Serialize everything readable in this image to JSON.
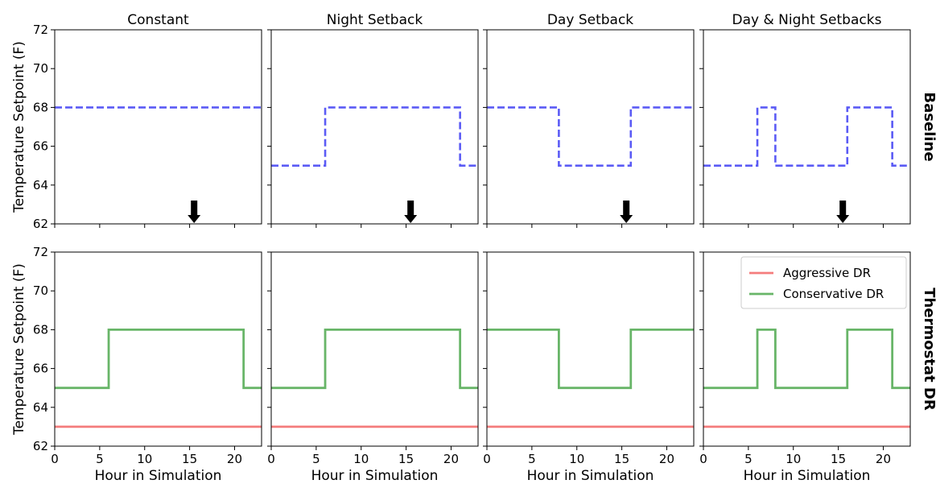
{
  "colors": {
    "baseline": "#5b5bf5",
    "aggressive": "#f47c7c",
    "conservative": "#68b568",
    "arrow": "#000000"
  },
  "row_labels": [
    "Baseline",
    "Thermostat DR"
  ],
  "chart_data": [
    {
      "type": "line",
      "row": 0,
      "col": 0,
      "title": "Constant",
      "ylabel": "Temperature Setpoint (F)",
      "xlabel": "",
      "xlim": [
        0,
        23
      ],
      "ylim": [
        62,
        72
      ],
      "xticks": [
        0,
        5,
        10,
        15,
        20
      ],
      "yticks": [
        62,
        64,
        66,
        68,
        70,
        72
      ],
      "show_xticklabels": false,
      "show_yticklabels": true,
      "series": [
        {
          "key": "baseline",
          "style": "dashed",
          "steps": [
            [
              0,
              68
            ],
            [
              23,
              68
            ]
          ]
        }
      ],
      "arrow_x": 15.5
    },
    {
      "type": "line",
      "row": 0,
      "col": 1,
      "title": "Night Setback",
      "ylabel": "",
      "xlabel": "",
      "xlim": [
        0,
        23
      ],
      "ylim": [
        62,
        72
      ],
      "xticks": [
        0,
        5,
        10,
        15,
        20
      ],
      "yticks": [
        62,
        64,
        66,
        68,
        70,
        72
      ],
      "show_xticklabels": false,
      "show_yticklabels": false,
      "series": [
        {
          "key": "baseline",
          "style": "dashed",
          "steps": [
            [
              0,
              65
            ],
            [
              6,
              65
            ],
            [
              6,
              68
            ],
            [
              21,
              68
            ],
            [
              21,
              65
            ],
            [
              23,
              65
            ]
          ]
        }
      ],
      "arrow_x": 15.5
    },
    {
      "type": "line",
      "row": 0,
      "col": 2,
      "title": "Day Setback",
      "ylabel": "",
      "xlabel": "",
      "xlim": [
        0,
        23
      ],
      "ylim": [
        62,
        72
      ],
      "xticks": [
        0,
        5,
        10,
        15,
        20
      ],
      "yticks": [
        62,
        64,
        66,
        68,
        70,
        72
      ],
      "show_xticklabels": false,
      "show_yticklabels": false,
      "series": [
        {
          "key": "baseline",
          "style": "dashed",
          "steps": [
            [
              0,
              68
            ],
            [
              8,
              68
            ],
            [
              8,
              65
            ],
            [
              16,
              65
            ],
            [
              16,
              68
            ],
            [
              23,
              68
            ]
          ]
        }
      ],
      "arrow_x": 15.5
    },
    {
      "type": "line",
      "row": 0,
      "col": 3,
      "title": "Day & Night Setbacks",
      "ylabel": "",
      "xlabel": "",
      "xlim": [
        0,
        23
      ],
      "ylim": [
        62,
        72
      ],
      "xticks": [
        0,
        5,
        10,
        15,
        20
      ],
      "yticks": [
        62,
        64,
        66,
        68,
        70,
        72
      ],
      "show_xticklabels": false,
      "show_yticklabels": false,
      "series": [
        {
          "key": "baseline",
          "style": "dashed",
          "steps": [
            [
              0,
              65
            ],
            [
              6,
              65
            ],
            [
              6,
              68
            ],
            [
              8,
              68
            ],
            [
              8,
              65
            ],
            [
              16,
              65
            ],
            [
              16,
              68
            ],
            [
              21,
              68
            ],
            [
              21,
              65
            ],
            [
              23,
              65
            ]
          ]
        }
      ],
      "arrow_x": 15.5
    },
    {
      "type": "line",
      "row": 1,
      "col": 0,
      "title": "",
      "ylabel": "Temperature Setpoint (F)",
      "xlabel": "Hour in Simulation",
      "xlim": [
        0,
        23
      ],
      "ylim": [
        62,
        72
      ],
      "xticks": [
        0,
        5,
        10,
        15,
        20
      ],
      "yticks": [
        62,
        64,
        66,
        68,
        70,
        72
      ],
      "show_xticklabels": true,
      "show_yticklabels": true,
      "series": [
        {
          "key": "aggressive",
          "style": "solid",
          "steps": [
            [
              0,
              63
            ],
            [
              23,
              63
            ]
          ]
        },
        {
          "key": "conservative",
          "style": "solid",
          "steps": [
            [
              0,
              65
            ],
            [
              6,
              65
            ],
            [
              6,
              68
            ],
            [
              21,
              68
            ],
            [
              21,
              65
            ],
            [
              23,
              65
            ]
          ]
        }
      ]
    },
    {
      "type": "line",
      "row": 1,
      "col": 1,
      "title": "",
      "ylabel": "",
      "xlabel": "Hour in Simulation",
      "xlim": [
        0,
        23
      ],
      "ylim": [
        62,
        72
      ],
      "xticks": [
        0,
        5,
        10,
        15,
        20
      ],
      "yticks": [
        62,
        64,
        66,
        68,
        70,
        72
      ],
      "show_xticklabels": true,
      "show_yticklabels": false,
      "series": [
        {
          "key": "aggressive",
          "style": "solid",
          "steps": [
            [
              0,
              63
            ],
            [
              23,
              63
            ]
          ]
        },
        {
          "key": "conservative",
          "style": "solid",
          "steps": [
            [
              0,
              65
            ],
            [
              6,
              65
            ],
            [
              6,
              68
            ],
            [
              21,
              68
            ],
            [
              21,
              65
            ],
            [
              23,
              65
            ]
          ]
        }
      ]
    },
    {
      "type": "line",
      "row": 1,
      "col": 2,
      "title": "",
      "ylabel": "",
      "xlabel": "Hour in Simulation",
      "xlim": [
        0,
        23
      ],
      "ylim": [
        62,
        72
      ],
      "xticks": [
        0,
        5,
        10,
        15,
        20
      ],
      "yticks": [
        62,
        64,
        66,
        68,
        70,
        72
      ],
      "show_xticklabels": true,
      "show_yticklabels": false,
      "series": [
        {
          "key": "aggressive",
          "style": "solid",
          "steps": [
            [
              0,
              63
            ],
            [
              23,
              63
            ]
          ]
        },
        {
          "key": "conservative",
          "style": "solid",
          "steps": [
            [
              0,
              68
            ],
            [
              8,
              68
            ],
            [
              8,
              65
            ],
            [
              16,
              65
            ],
            [
              16,
              68
            ],
            [
              23,
              68
            ]
          ]
        }
      ]
    },
    {
      "type": "line",
      "row": 1,
      "col": 3,
      "title": "",
      "ylabel": "",
      "xlabel": "Hour in Simulation",
      "xlim": [
        0,
        23
      ],
      "ylim": [
        62,
        72
      ],
      "xticks": [
        0,
        5,
        10,
        15,
        20
      ],
      "yticks": [
        62,
        64,
        66,
        68,
        70,
        72
      ],
      "show_xticklabels": true,
      "show_yticklabels": false,
      "series": [
        {
          "key": "aggressive",
          "style": "solid",
          "steps": [
            [
              0,
              63
            ],
            [
              23,
              63
            ]
          ]
        },
        {
          "key": "conservative",
          "style": "solid",
          "steps": [
            [
              0,
              65
            ],
            [
              6,
              65
            ],
            [
              6,
              68
            ],
            [
              8,
              68
            ],
            [
              8,
              65
            ],
            [
              16,
              65
            ],
            [
              16,
              68
            ],
            [
              21,
              68
            ],
            [
              21,
              65
            ],
            [
              23,
              65
            ]
          ]
        }
      ],
      "legend": {
        "location": "upper-right",
        "entries": [
          {
            "key": "aggressive",
            "label": "Aggressive DR"
          },
          {
            "key": "conservative",
            "label": "Conservative DR"
          }
        ]
      }
    }
  ]
}
